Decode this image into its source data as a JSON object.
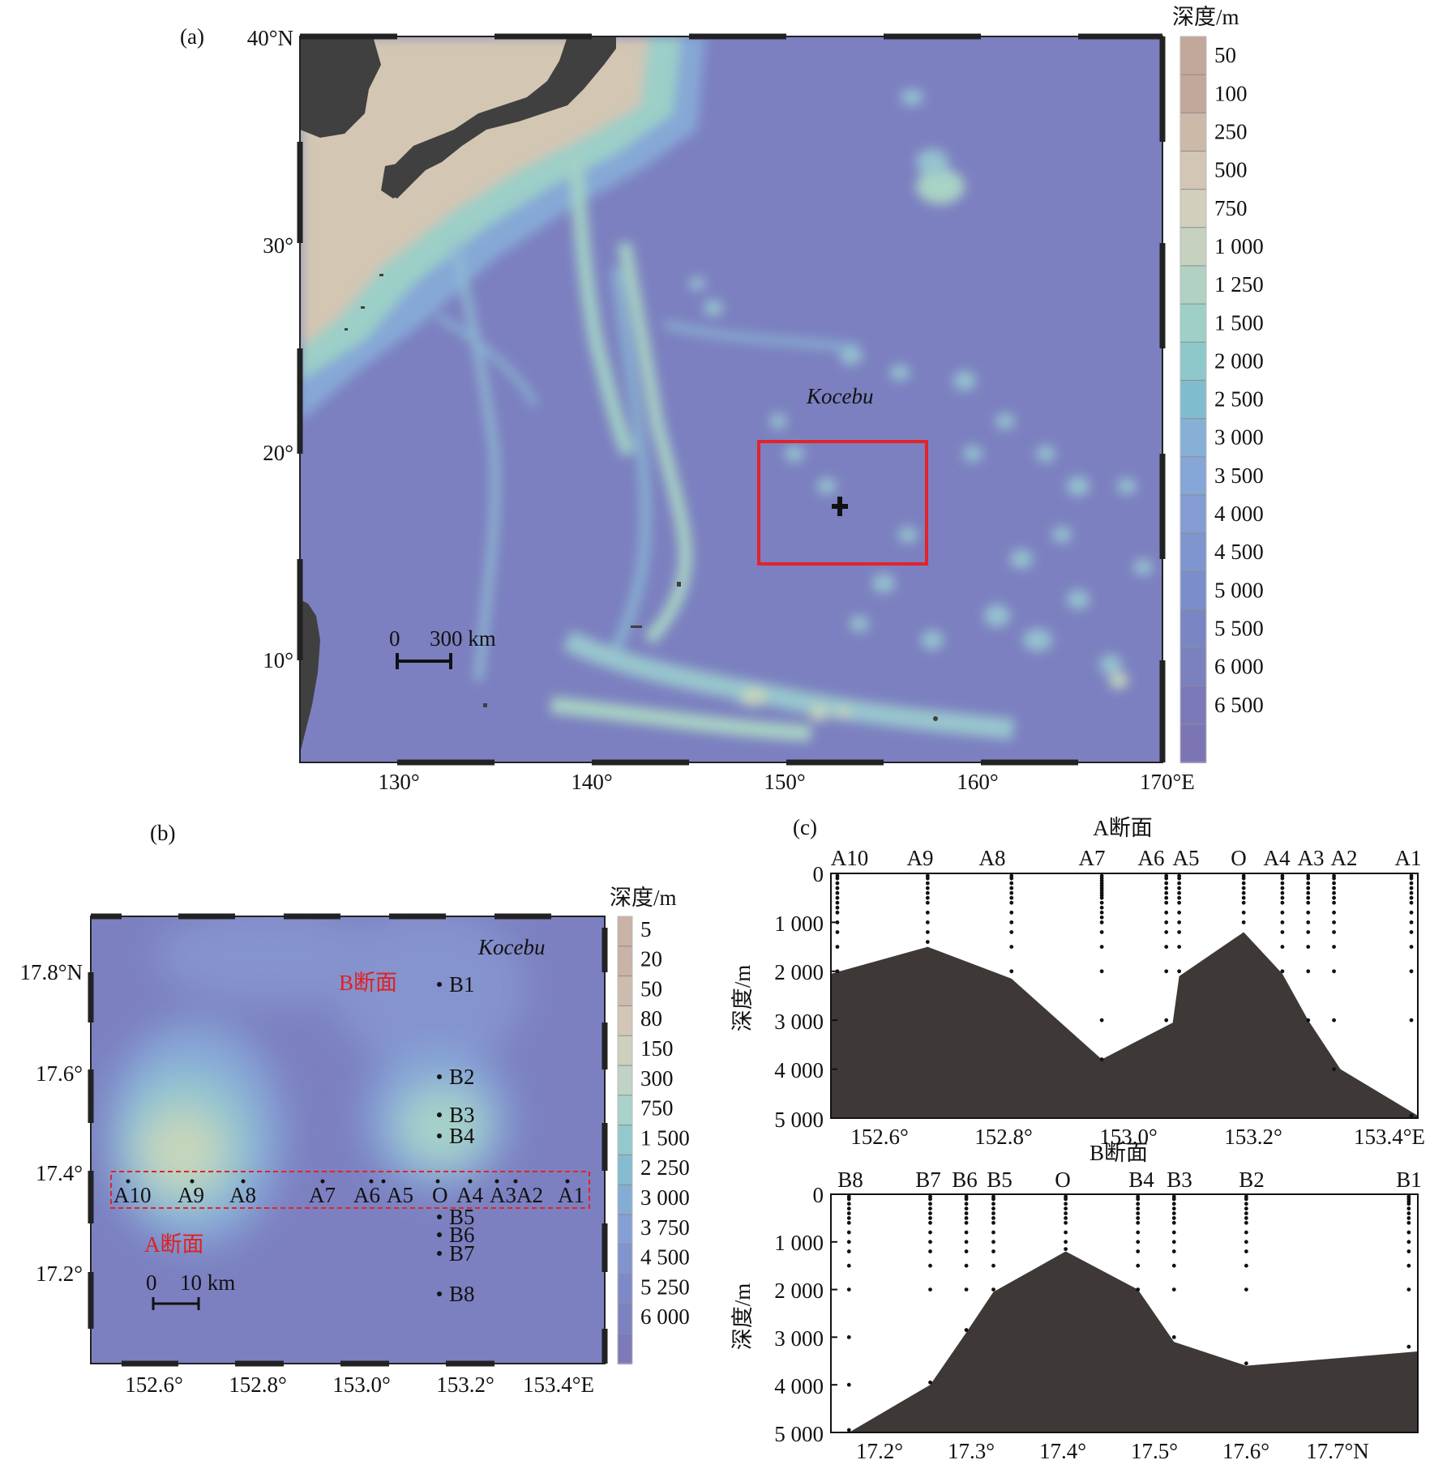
{
  "panel_a": {
    "label": "(a)",
    "lat_ticks": [
      "40°N",
      "30°",
      "20°",
      "10°"
    ],
    "lon_ticks": [
      "130°",
      "140°",
      "150°",
      "160°",
      "170°E"
    ],
    "place": "Kocebu",
    "scale": {
      "zero": "0",
      "text": "300 km"
    },
    "colorbar": {
      "title": "深度/m",
      "labels": [
        "50",
        "100",
        "250",
        "500",
        "750",
        "1 000",
        "1 250",
        "1 500",
        "2 000",
        "2 500",
        "3 000",
        "3 500",
        "4 000",
        "4 500",
        "5 000",
        "5 500",
        "6 000",
        "6 500"
      ],
      "colors": [
        "#c2a89a",
        "#cdb9a8",
        "#d3c6b5",
        "#d2cfbc",
        "#c6d1c0",
        "#b1d2c3",
        "#9fd0c7",
        "#8ec8cb",
        "#80bccd",
        "#86b0d5",
        "#85a6d6",
        "#839dd3",
        "#7f95cf",
        "#7b8dca",
        "#7a85c4",
        "#7b80bf",
        "#7b79b8",
        "#7c75b4"
      ]
    }
  },
  "panel_b": {
    "label": "(b)",
    "lat_ticks": [
      "17.8°N",
      "17.6°",
      "17.4°",
      "17.2°"
    ],
    "lon_ticks": [
      "152.6°",
      "152.8°",
      "153.0°",
      "153.2°",
      "153.4°E"
    ],
    "place": "Kocebu",
    "section_a_label": "A断面",
    "section_b_label": "B断面",
    "a_stations": [
      "A10",
      "A9",
      "A8",
      "A7",
      "A6",
      "A5",
      "O",
      "A4",
      "A3",
      "A2",
      "A1"
    ],
    "b_stations": [
      "B1",
      "B2",
      "B3",
      "B4",
      "B5",
      "B6",
      "B7",
      "B8"
    ],
    "scale": {
      "zero": "0",
      "text": "10 km"
    },
    "colorbar": {
      "title": "深度/m",
      "labels": [
        "5",
        "20",
        "50",
        "80",
        "150",
        "300",
        "750",
        "1 500",
        "2 250",
        "3 000",
        "3 750",
        "4 500",
        "5 250",
        "6 000"
      ],
      "colors": [
        "#c9b2a6",
        "#cdbcae",
        "#d2c6b6",
        "#cfcfbe",
        "#c0d3c4",
        "#a9d2c8",
        "#93c9cc",
        "#85bcd0",
        "#85acd5",
        "#849fd3",
        "#8194ce",
        "#7e8ac7",
        "#7c82c0",
        "#7c7ab9"
      ]
    }
  },
  "panel_c": {
    "label": "(c)",
    "section_a": {
      "title": "A断面",
      "station_labels": [
        "A10",
        "A9",
        "A8",
        "A7",
        "A6",
        "A5",
        "O",
        "A4",
        "A3",
        "A2",
        "A1"
      ],
      "x_ticks": [
        "152.6°",
        "152.8°",
        "153.0°",
        "153.2°",
        "153.4°E"
      ],
      "y_ticks": [
        "0",
        "1 000",
        "2 000",
        "3 000",
        "4 000",
        "5 000"
      ],
      "ylabel": "深度/m"
    },
    "section_b": {
      "title": "B断面",
      "station_labels": [
        "B8",
        "B7",
        "B6",
        "B5",
        "O",
        "B4",
        "B3",
        "B2",
        "B1"
      ],
      "x_ticks": [
        "17.2°",
        "17.3°",
        "17.4°",
        "17.5°",
        "17.6°",
        "17.7°N"
      ],
      "y_ticks": [
        "0",
        "1 000",
        "2 000",
        "3 000",
        "4 000",
        "5 000"
      ],
      "ylabel": "深度/m"
    }
  },
  "chart_data": [
    {
      "type": "area",
      "title": "A断面",
      "xlabel": "",
      "ylabel": "深度/m",
      "xlim": [
        152.52,
        153.43
      ],
      "ylim": [
        0,
        5000
      ],
      "y_inverted": true,
      "station_x": [
        152.53,
        152.67,
        152.8,
        152.94,
        153.04,
        153.06,
        153.16,
        153.22,
        153.26,
        153.3,
        153.42
      ],
      "seafloor": {
        "x": [
          152.52,
          152.67,
          152.8,
          152.94,
          153.05,
          153.06,
          153.16,
          153.22,
          153.26,
          153.31,
          153.43
        ],
        "depth": [
          2050,
          1500,
          2150,
          3800,
          3050,
          2100,
          1200,
          2050,
          3000,
          4000,
          4950
        ]
      },
      "sample_depths": [
        [
          50,
          100,
          200,
          300,
          400,
          500,
          600,
          700,
          800,
          1000,
          1200,
          1500,
          2000
        ],
        [
          50,
          100,
          200,
          300,
          400,
          500,
          600,
          800,
          1000,
          1200,
          1400
        ],
        [
          50,
          100,
          200,
          300,
          400,
          500,
          600,
          800,
          1000,
          1200,
          1500,
          2000
        ],
        [
          50,
          100,
          150,
          200,
          250,
          300,
          350,
          400,
          450,
          500,
          600,
          700,
          800,
          900,
          1000,
          1200,
          1500,
          2000,
          3000,
          3800
        ],
        [
          50,
          100,
          200,
          300,
          400,
          500,
          600,
          800,
          1000,
          1200,
          1500,
          2000,
          3000
        ],
        [
          50,
          100,
          200,
          300,
          400,
          500,
          600,
          800,
          1000,
          1200,
          1500,
          2000
        ],
        [
          50,
          100,
          200,
          300,
          400,
          500,
          600,
          800,
          1000
        ],
        [
          50,
          100,
          200,
          300,
          400,
          500,
          600,
          800,
          1000,
          1200,
          1500,
          2000
        ],
        [
          50,
          100,
          200,
          300,
          400,
          500,
          600,
          800,
          1000,
          1200,
          1500,
          2000,
          3000
        ],
        [
          50,
          100,
          200,
          300,
          400,
          500,
          600,
          800,
          1000,
          1200,
          1500,
          2000,
          3000,
          4000
        ],
        [
          50,
          100,
          200,
          300,
          400,
          500,
          600,
          800,
          1000,
          1200,
          1500,
          2000,
          3000,
          4950
        ]
      ]
    },
    {
      "type": "area",
      "title": "B断面",
      "xlabel": "",
      "ylabel": "深度/m",
      "xlim": [
        17.14,
        17.79
      ],
      "ylim": [
        0,
        5000
      ],
      "y_inverted": true,
      "station_x": [
        17.16,
        17.25,
        17.29,
        17.32,
        17.4,
        17.48,
        17.52,
        17.6,
        17.78
      ],
      "seafloor": {
        "x": [
          17.16,
          17.25,
          17.29,
          17.32,
          17.4,
          17.48,
          17.52,
          17.6,
          17.79
        ],
        "depth": [
          5000,
          4000,
          2900,
          2050,
          1200,
          2000,
          3100,
          3600,
          3300
        ]
      },
      "sample_depths": [
        [
          50,
          100,
          200,
          300,
          400,
          500,
          600,
          800,
          1000,
          1200,
          1500,
          2000,
          3000,
          4000,
          4950
        ],
        [
          50,
          100,
          200,
          300,
          400,
          500,
          600,
          800,
          1000,
          1200,
          1500,
          2000,
          3950
        ],
        [
          50,
          100,
          200,
          300,
          400,
          500,
          600,
          800,
          1000,
          1200,
          1500,
          2000,
          2850
        ],
        [
          50,
          100,
          200,
          300,
          400,
          500,
          600,
          800,
          1000,
          1200,
          1500,
          2000
        ],
        [
          50,
          100,
          200,
          300,
          400,
          500,
          600,
          800,
          1000,
          1150
        ],
        [
          50,
          100,
          200,
          300,
          400,
          500,
          600,
          800,
          1000,
          1200,
          1500,
          2000
        ],
        [
          50,
          100,
          200,
          300,
          400,
          500,
          600,
          800,
          1000,
          1200,
          1500,
          2000,
          3000
        ],
        [
          50,
          100,
          200,
          300,
          400,
          500,
          600,
          800,
          1000,
          1200,
          1500,
          2000,
          3550
        ],
        [
          50,
          100,
          150,
          200,
          300,
          400,
          500,
          600,
          800,
          1000,
          1200,
          1500,
          2000,
          3200
        ]
      ]
    }
  ]
}
